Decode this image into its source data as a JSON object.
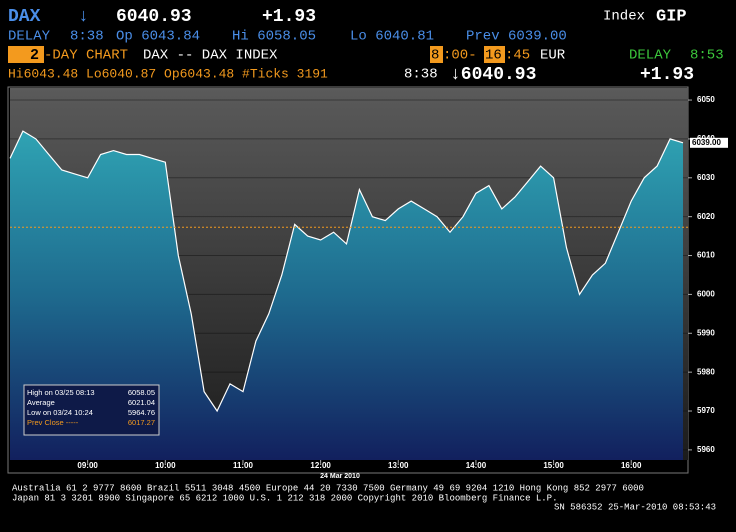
{
  "header": {
    "symbol": "DAX",
    "arrow": "↓",
    "last": "6040.93",
    "change": "+1.93",
    "index_label": "Index",
    "index_code": "GIP"
  },
  "row2": {
    "delay": "DELAY",
    "time": "8:38",
    "open": "Op 6043.84",
    "high": "Hi 6058.05",
    "low": "Lo 6040.81",
    "prev": "Prev 6039.00"
  },
  "row3": {
    "days": "2",
    "chart": "-DAY CHART",
    "name": "DAX -- DAX INDEX",
    "start_h": "8",
    "start_m": ":00-",
    "end_h": "16",
    "end_m": ":45",
    "currency": "EUR",
    "delay": "DELAY",
    "delay_time": "8:53"
  },
  "row4": {
    "stats": "Hi6043.48 Lo6040.87 Op6043.48 #Ticks 3191",
    "time": "8:38",
    "last": "↓6040.93",
    "change": "+1.93"
  },
  "footer": {
    "line1": "Australia 61 2 9777 8600 Brazil 5511 3048 4500 Europe 44 20 7330 7500 Germany 49 69 9204 1210 Hong Kong 852 2977 6000",
    "line2": "Japan 81 3 3201 8900        Singapore 65 6212 1000      U.S. 1 212 318 2000         Copyright 2010 Bloomberg Finance L.P.",
    "line3": "SN 586352 25-Mar-2010 08:53:43"
  },
  "chart_data": {
    "type": "area",
    "date_label": "24 Mar 2010",
    "last_label": "6039.00",
    "x": [
      "08:00",
      "08:10",
      "08:20",
      "08:30",
      "08:40",
      "08:50",
      "09:00",
      "09:10",
      "09:20",
      "09:30",
      "09:40",
      "09:50",
      "10:00",
      "10:10",
      "10:20",
      "10:30",
      "10:40",
      "10:50",
      "11:00",
      "11:10",
      "11:20",
      "11:30",
      "11:40",
      "11:50",
      "12:00",
      "12:10",
      "12:20",
      "12:30",
      "12:40",
      "12:50",
      "13:00",
      "13:10",
      "13:20",
      "13:30",
      "13:40",
      "13:50",
      "14:00",
      "14:10",
      "14:20",
      "14:30",
      "14:40",
      "14:50",
      "15:00",
      "15:10",
      "15:20",
      "15:30",
      "15:40",
      "15:50",
      "16:00",
      "16:10",
      "16:20",
      "16:30",
      "16:40"
    ],
    "series": [
      {
        "name": "DAX",
        "color": "#ffffff",
        "values": [
          6035,
          6042,
          6040,
          6036,
          6032,
          6031,
          6030,
          6036,
          6037,
          6036,
          6036,
          6035,
          6034,
          6010,
          5995,
          5975,
          5970,
          5977,
          5975,
          5988,
          5995,
          6005,
          6018,
          6015,
          6014,
          6016,
          6013,
          6027,
          6020,
          6019,
          6022,
          6024,
          6022,
          6020,
          6016,
          6020,
          6026,
          6028,
          6022,
          6025,
          6029,
          6033,
          6030,
          6012,
          6000,
          6005,
          6008,
          6016,
          6024,
          6030,
          6033,
          6040,
          6039
        ]
      }
    ],
    "ylim": [
      5957.4,
      6053.1
    ],
    "yticks": [
      5960,
      5970,
      5980,
      5990,
      6000,
      6010,
      6020,
      6030,
      6040,
      6050
    ],
    "xticks": [
      "09:00",
      "10:00",
      "11:00",
      "12:00",
      "13:00",
      "14:00",
      "15:00",
      "16:00"
    ],
    "stats": [
      {
        "label": "High on 03/25 08:13",
        "value": 6058.05
      },
      {
        "label": "Average",
        "value": 6021.04
      },
      {
        "label": "Low on 03/24 10:24",
        "value": 5964.76
      },
      {
        "label": "Prev Close -----",
        "value": 6017.27
      }
    ]
  }
}
